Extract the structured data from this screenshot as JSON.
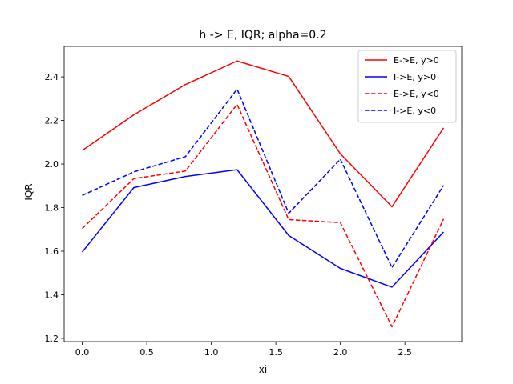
{
  "chart_data": {
    "type": "line",
    "title": "h -> E, IQR; alpha=0.2",
    "xlabel": "xi",
    "ylabel": "IQR",
    "xlim": [
      -0.14,
      2.94
    ],
    "ylim": [
      1.185,
      2.54
    ],
    "x_ticks": [
      0.0,
      0.5,
      1.0,
      1.5,
      2.0,
      2.5
    ],
    "x_tick_labels": [
      "0.0",
      "0.5",
      "1.0",
      "1.5",
      "2.0",
      "2.5"
    ],
    "y_ticks": [
      1.2,
      1.4,
      1.6,
      1.8,
      2.0,
      2.2,
      2.4
    ],
    "y_tick_labels": [
      "1.2",
      "1.4",
      "1.6",
      "1.8",
      "2.0",
      "2.2",
      "2.4"
    ],
    "grid": false,
    "legend_position": "top-right",
    "x": [
      0.0,
      0.4,
      0.8,
      1.2,
      1.6,
      2.0,
      2.4,
      2.8
    ],
    "series": [
      {
        "name": "E->E, y>0",
        "color": "#ff0000",
        "dash": "solid",
        "values": [
          2.062,
          2.226,
          2.365,
          2.473,
          2.402,
          2.047,
          1.804,
          2.166
        ]
      },
      {
        "name": "I->E, y>0",
        "color": "#0000ff",
        "dash": "solid",
        "values": [
          1.596,
          1.892,
          1.943,
          1.974,
          1.672,
          1.521,
          1.435,
          1.688
        ]
      },
      {
        "name": "E->E, y<0",
        "color": "#ff0000",
        "dash": "dashed",
        "values": [
          1.704,
          1.933,
          1.968,
          2.274,
          1.745,
          1.731,
          1.253,
          1.748
        ]
      },
      {
        "name": "I->E, y<0",
        "color": "#0000ff",
        "dash": "dashed",
        "values": [
          1.856,
          1.964,
          2.034,
          2.344,
          1.774,
          2.022,
          1.525,
          1.902
        ]
      }
    ]
  }
}
